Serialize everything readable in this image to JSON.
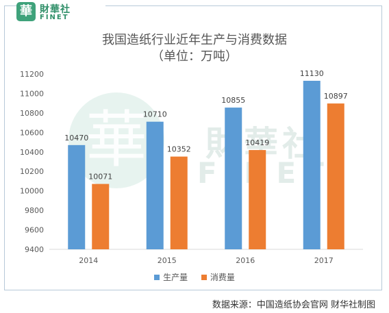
{
  "logo": {
    "seal_glyph": "華",
    "name_cn": "財華社",
    "name_en": "FINET"
  },
  "watermark": {
    "glyph": "華",
    "name_cn": "財華社",
    "name_en": "FINET"
  },
  "source_text": "数据来源：中国造纸协会官网    财华社制图",
  "colors": {
    "production": "#5b9bd5",
    "consumption": "#ed7d31",
    "axis": "#d9d9d9",
    "frame": "#b7c9d8"
  },
  "chart_data": {
    "type": "bar",
    "title": "我国造纸行业近年生产与消费数据",
    "subtitle": "（单位：万吨）",
    "categories": [
      "2014",
      "2015",
      "2016",
      "2017"
    ],
    "series": [
      {
        "name": "生产量",
        "values": [
          10470,
          10710,
          10855,
          11130
        ]
      },
      {
        "name": "消费量",
        "values": [
          10071,
          10352,
          10419,
          10897
        ]
      }
    ],
    "ylim": [
      9400,
      11200
    ],
    "yticks": [
      9400,
      9600,
      9800,
      10000,
      10200,
      10400,
      10600,
      10800,
      11000,
      11200
    ],
    "grid": false,
    "legend": "bottom"
  }
}
